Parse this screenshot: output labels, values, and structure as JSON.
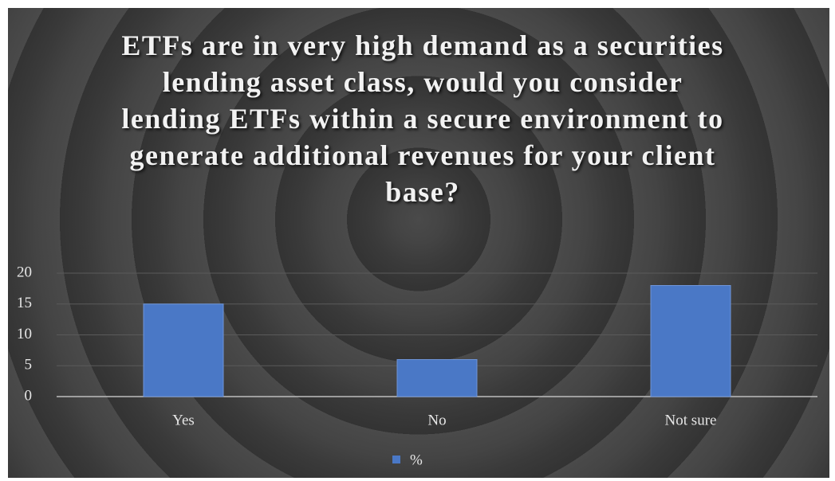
{
  "chart_data": {
    "type": "bar",
    "title": "ETFs are in very high demand as a securities lending asset class, would you consider lending ETFs within a secure environment to generate additional revenues for your client base?",
    "categories": [
      "Yes",
      "No",
      "Not sure"
    ],
    "series": [
      {
        "name": "%",
        "color": "#4a78c6",
        "values": [
          15,
          6,
          18
        ]
      }
    ],
    "ylim": [
      0,
      20
    ],
    "yticks": [
      0,
      5,
      10,
      15,
      20
    ],
    "grid": true,
    "legend": "bottom"
  }
}
